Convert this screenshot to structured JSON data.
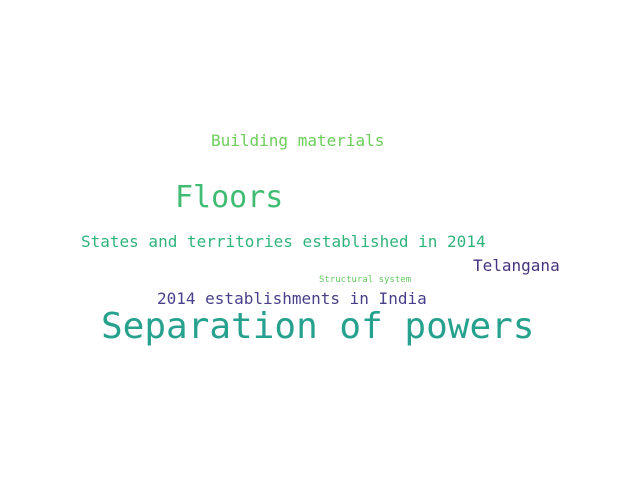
{
  "word_cloud": {
    "words": [
      {
        "text": "Building materials",
        "color": "#6ccd5a"
      },
      {
        "text": "Floors",
        "color": "#3fbc72"
      },
      {
        "text": "States and territories established in 2014",
        "color": "#2fb47c"
      },
      {
        "text": "Telangana",
        "color": "#46327e"
      },
      {
        "text": "Structural system",
        "color": "#62cb5f"
      },
      {
        "text": "2014 establishments in India",
        "color": "#48408a"
      },
      {
        "text": "Separation of powers",
        "color": "#25a18e"
      }
    ]
  }
}
